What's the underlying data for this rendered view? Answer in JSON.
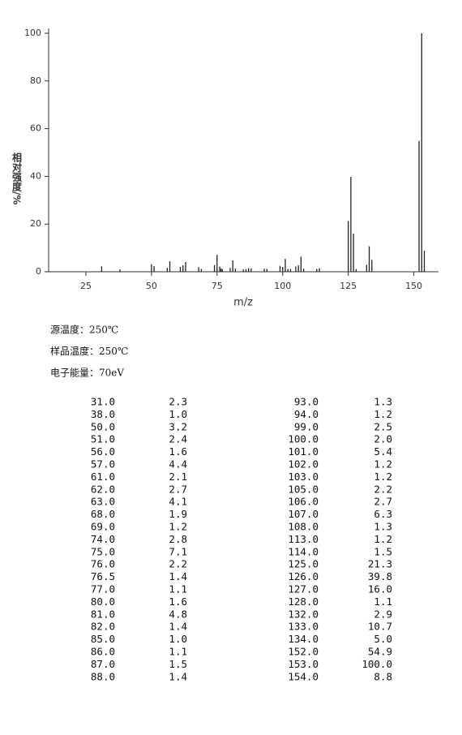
{
  "chart_data": {
    "type": "bar",
    "x_label": "m/z",
    "y_label": "相对强度/%",
    "x": [
      31,
      38,
      50,
      51,
      56,
      57,
      61,
      62,
      63,
      68,
      69,
      74,
      75,
      76,
      76.5,
      77,
      80,
      81,
      82,
      85,
      86,
      87,
      88,
      93,
      94,
      99,
      100,
      101,
      102,
      103,
      105,
      106,
      107,
      108,
      113,
      114,
      125,
      126,
      127,
      128,
      132,
      133,
      134,
      152,
      153,
      154
    ],
    "values": [
      2.3,
      1.0,
      3.2,
      2.4,
      1.6,
      4.4,
      2.1,
      2.7,
      4.1,
      1.9,
      1.2,
      2.8,
      7.1,
      2.2,
      1.4,
      1.1,
      1.6,
      4.8,
      1.4,
      1.0,
      1.1,
      1.5,
      1.4,
      1.3,
      1.2,
      2.5,
      2.0,
      5.4,
      1.2,
      1.2,
      2.2,
      2.7,
      6.3,
      1.3,
      1.2,
      1.5,
      21.3,
      39.8,
      16.0,
      1.1,
      2.9,
      10.7,
      5.0,
      54.9,
      100,
      8.8
    ],
    "color": "#222",
    "xlim": [
      10.8,
      159.4
    ],
    "ylim": [
      0,
      100
    ],
    "xticks": [
      25,
      50,
      75,
      100,
      125,
      150
    ],
    "yticks": [
      0,
      20,
      40,
      60,
      80,
      100
    ]
  },
  "conditions": [
    "源温度：250℃",
    "样品温度：250℃",
    "电子能量：70eV"
  ],
  "table": {
    "left": [
      [
        "31.0",
        "2.3"
      ],
      [
        "38.0",
        "1.0"
      ],
      [
        "50.0",
        "3.2"
      ],
      [
        "51.0",
        "2.4"
      ],
      [
        "56.0",
        "1.6"
      ],
      [
        "57.0",
        "4.4"
      ],
      [
        "61.0",
        "2.1"
      ],
      [
        "62.0",
        "2.7"
      ],
      [
        "63.0",
        "4.1"
      ],
      [
        "68.0",
        "1.9"
      ],
      [
        "69.0",
        "1.2"
      ],
      [
        "74.0",
        "2.8"
      ],
      [
        "75.0",
        "7.1"
      ],
      [
        "76.0",
        "2.2"
      ],
      [
        "76.5",
        "1.4"
      ],
      [
        "77.0",
        "1.1"
      ],
      [
        "80.0",
        "1.6"
      ],
      [
        "81.0",
        "4.8"
      ],
      [
        "82.0",
        "1.4"
      ],
      [
        "85.0",
        "1.0"
      ],
      [
        "86.0",
        "1.1"
      ],
      [
        "87.0",
        "1.5"
      ],
      [
        "88.0",
        "1.4"
      ]
    ],
    "right": [
      [
        "93.0",
        "1.3"
      ],
      [
        "94.0",
        "1.2"
      ],
      [
        "99.0",
        "2.5"
      ],
      [
        "100.0",
        "2.0"
      ],
      [
        "101.0",
        "5.4"
      ],
      [
        "102.0",
        "1.2"
      ],
      [
        "103.0",
        "1.2"
      ],
      [
        "105.0",
        "2.2"
      ],
      [
        "106.0",
        "2.7"
      ],
      [
        "107.0",
        "6.3"
      ],
      [
        "108.0",
        "1.3"
      ],
      [
        "113.0",
        "1.2"
      ],
      [
        "114.0",
        "1.5"
      ],
      [
        "125.0",
        "21.3"
      ],
      [
        "126.0",
        "39.8"
      ],
      [
        "127.0",
        "16.0"
      ],
      [
        "128.0",
        "1.1"
      ],
      [
        "132.0",
        "2.9"
      ],
      [
        "133.0",
        "10.7"
      ],
      [
        "134.0",
        "5.0"
      ],
      [
        "152.0",
        "54.9"
      ],
      [
        "153.0",
        "100.0"
      ],
      [
        "154.0",
        "8.8"
      ]
    ]
  }
}
